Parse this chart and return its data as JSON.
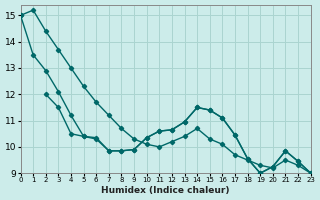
{
  "xlabel": "Humidex (Indice chaleur)",
  "background_color": "#ccecea",
  "grid_color": "#aad4d0",
  "line_color": "#006868",
  "xlim": [
    0,
    23
  ],
  "ylim": [
    9,
    15.4
  ],
  "yticks": [
    9,
    10,
    11,
    12,
    13,
    14,
    15
  ],
  "xticks": [
    0,
    1,
    2,
    3,
    4,
    5,
    6,
    7,
    8,
    9,
    10,
    11,
    12,
    13,
    14,
    15,
    16,
    17,
    18,
    19,
    20,
    21,
    22,
    23
  ],
  "series1_x": [
    0,
    1,
    2,
    3,
    4,
    5,
    6,
    7,
    8,
    9,
    10,
    11,
    12,
    13,
    14,
    15,
    16,
    17,
    18,
    19,
    20,
    21,
    22,
    23
  ],
  "series1_y": [
    15.0,
    15.2,
    14.4,
    13.7,
    13.0,
    12.3,
    11.7,
    11.2,
    10.7,
    10.3,
    10.1,
    10.0,
    10.2,
    10.4,
    10.7,
    10.3,
    10.1,
    9.7,
    9.5,
    9.3,
    9.2,
    9.5,
    9.3,
    9.0
  ],
  "series2_x": [
    2,
    3,
    4,
    5,
    6,
    7,
    8,
    9,
    10,
    11,
    12,
    13,
    14,
    15,
    16,
    17,
    18,
    19,
    20,
    21,
    22,
    23
  ],
  "series2_y": [
    12.0,
    11.5,
    10.5,
    10.4,
    10.3,
    9.85,
    9.85,
    9.9,
    10.35,
    10.6,
    10.65,
    10.95,
    11.5,
    11.4,
    11.1,
    10.45,
    9.55,
    9.0,
    9.25,
    9.85,
    9.45,
    9.0
  ],
  "series3_x": [
    0,
    1,
    2,
    3,
    4,
    5,
    6,
    7,
    8,
    9,
    10,
    11,
    12,
    13,
    14,
    15,
    16,
    17,
    18,
    19,
    20,
    21,
    22,
    23
  ],
  "series3_y": [
    15.0,
    13.5,
    12.9,
    12.1,
    11.2,
    10.4,
    10.35,
    9.85,
    9.85,
    9.9,
    10.35,
    10.6,
    10.65,
    10.95,
    11.5,
    11.4,
    11.1,
    10.45,
    9.55,
    9.0,
    9.25,
    9.85,
    9.45,
    9.0
  ]
}
